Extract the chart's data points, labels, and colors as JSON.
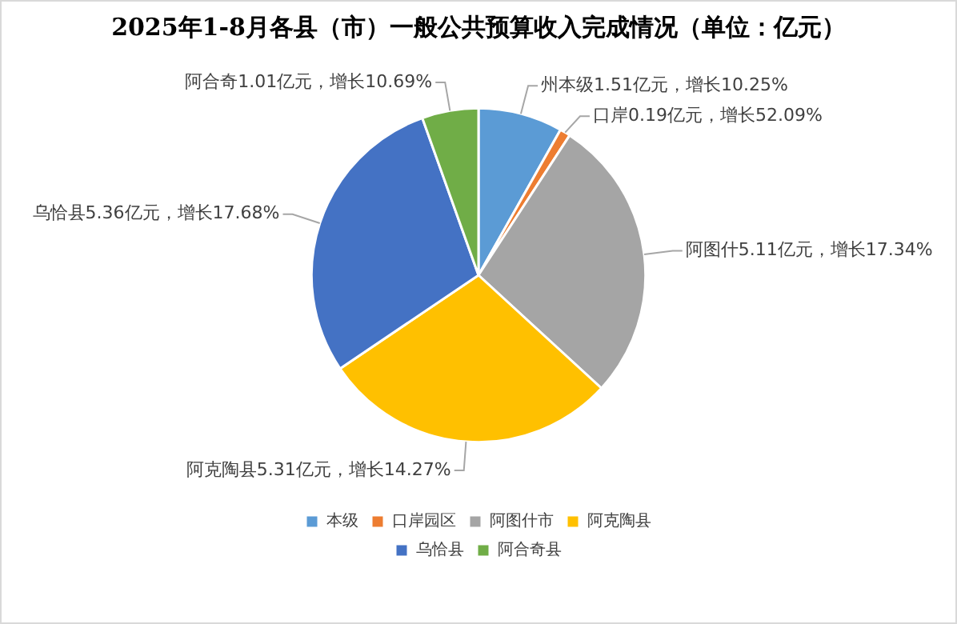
{
  "chart_data": {
    "type": "pie",
    "title": "2025年1-8月各县（市）一般公共预算收入完成情况（单位：亿元）",
    "categories": [
      "本级",
      "口岸园区",
      "阿图什市",
      "阿克陶县",
      "乌恰县",
      "阿合奇县"
    ],
    "values": [
      1.51,
      0.19,
      5.11,
      5.31,
      5.36,
      1.01
    ],
    "colors": [
      "#5b9bd5",
      "#ed7d31",
      "#a5a5a5",
      "#ffc000",
      "#4472c4",
      "#70ad47"
    ],
    "value_labels": [
      "州本级1.51亿元，增长10.25%",
      "口岸0.19亿元，增长52.09%",
      "阿图什5.11亿元，增长17.34%",
      "阿克陶县5.31亿元，增长14.27%",
      "乌恰县5.36亿元，增长17.68%",
      "阿合奇1.01亿元，增长10.69%"
    ],
    "legend": "bottom"
  }
}
